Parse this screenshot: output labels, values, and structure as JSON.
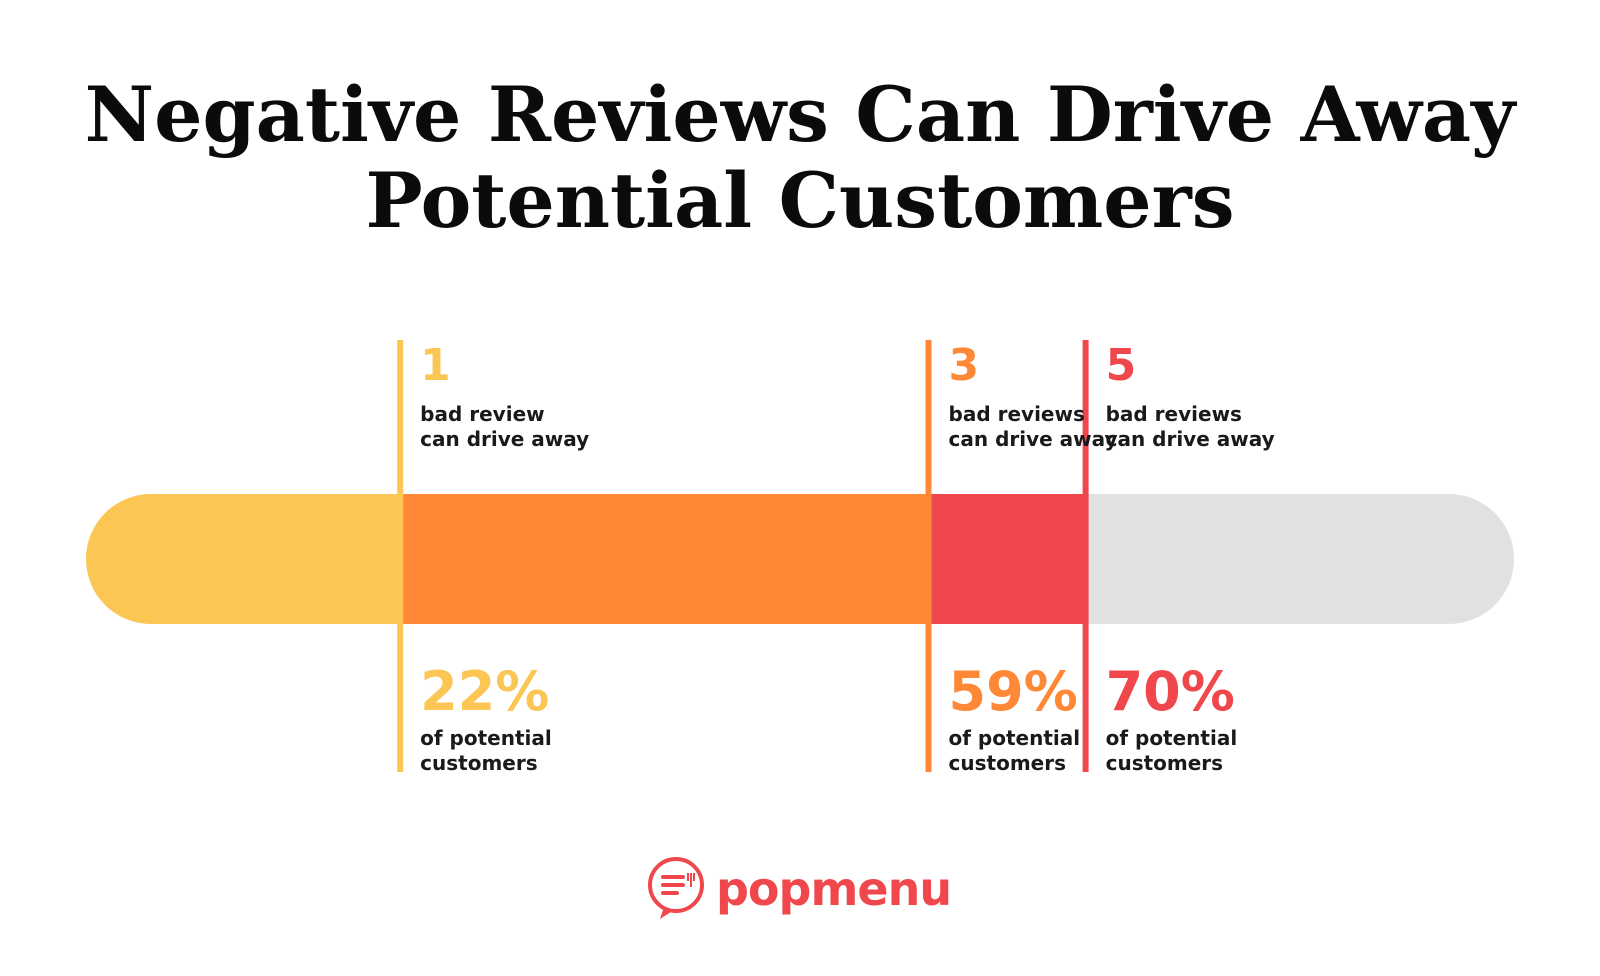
{
  "title": {
    "line1": "Negative Reviews Can Drive Away",
    "line2": "Potential Customers"
  },
  "colors": {
    "yellow": "#FBC654",
    "orange": "#FF8837",
    "red": "#F0474D",
    "gray": "#E1E1E1",
    "brand": "#F0474D"
  },
  "chart_data": {
    "type": "bar",
    "title": "Negative Reviews Can Drive Away Potential Customers",
    "xlim": [
      0,
      100
    ],
    "segments": [
      {
        "reviews": "1",
        "label_top": [
          "bad review",
          "can drive away"
        ],
        "value": 22,
        "value_label": "22%",
        "label_bottom": [
          "of potential",
          "customers"
        ],
        "color": "#FBC654"
      },
      {
        "reviews": "3",
        "label_top": [
          "bad reviews",
          "can drive away"
        ],
        "value": 59,
        "value_label": "59%",
        "label_bottom": [
          "of potential",
          "customers"
        ],
        "color": "#FF8837"
      },
      {
        "reviews": "5",
        "label_top": [
          "bad reviews",
          "can drive away"
        ],
        "value": 70,
        "value_label": "70%",
        "label_bottom": [
          "of potential",
          "customers"
        ],
        "color": "#F0474D"
      }
    ],
    "remainder_color": "#E1E1E1"
  },
  "logo": {
    "text": "popmenu",
    "icon": "chat-bubble-menu-icon"
  }
}
